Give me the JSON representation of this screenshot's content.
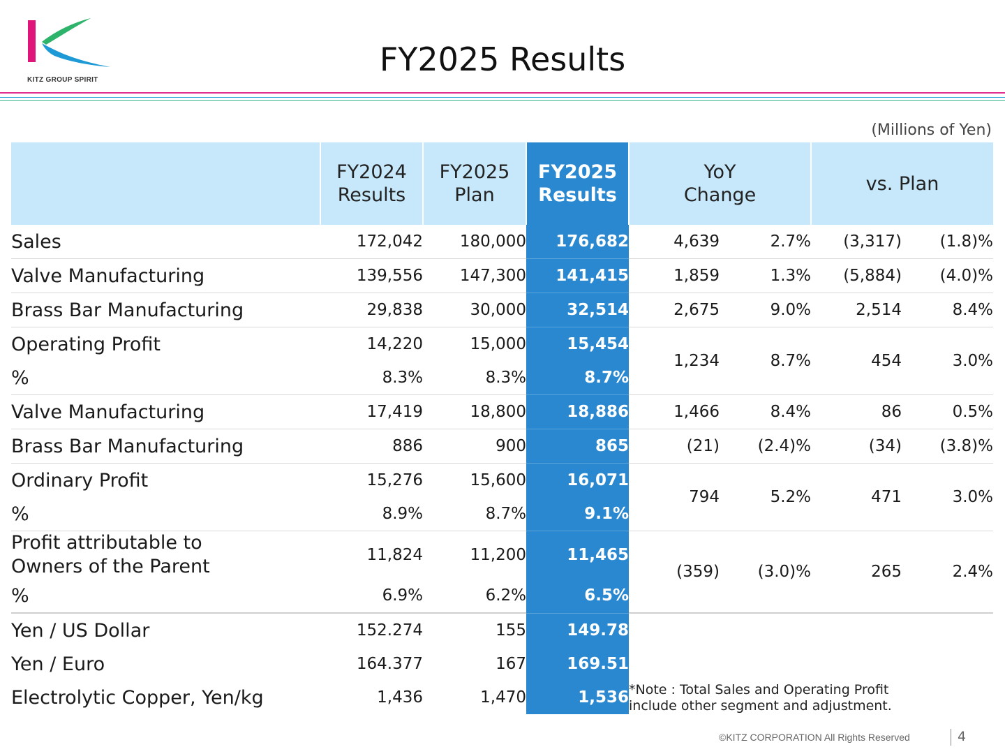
{
  "header": {
    "logo_text": "KITZ GROUP SPIRIT",
    "title": "FY2025 Results",
    "units": "(Millions of Yen)"
  },
  "colors": {
    "header_bg": "#c7e8fb",
    "highlight": "#2a88d0",
    "rule_magenta": "#e02f93",
    "rule_blue": "#2aa7d8",
    "rule_green": "#2fb38a",
    "logo_pink": "#e0157a",
    "logo_blue": "#1d9ad6",
    "logo_green": "#2db36a"
  },
  "table": {
    "columns": {
      "fy2024_line1": "FY2024",
      "fy2024_line2": "Results",
      "plan_line1": "FY2025",
      "plan_line2": "Plan",
      "results_line1": "FY2025",
      "results_line2": "Results",
      "yoy_line1": "YoY",
      "yoy_line2": "Change",
      "vs_plan": "vs. Plan"
    },
    "sales": {
      "label": "Sales",
      "fy2024": "172,042",
      "plan": "180,000",
      "results": "176,682",
      "yoy": "4,639",
      "yoy_pct": "2.7%",
      "vs": "(3,317)",
      "vs_pct": "(1.8)%"
    },
    "sales_valve": {
      "label": "Valve Manufacturing",
      "fy2024": "139,556",
      "plan": "147,300",
      "results": "141,415",
      "yoy": "1,859",
      "yoy_pct": "1.3%",
      "vs": "(5,884)",
      "vs_pct": "(4.0)%"
    },
    "sales_brass": {
      "label": "Brass Bar Manufacturing",
      "fy2024": "29,838",
      "plan": "30,000",
      "results": "32,514",
      "yoy": "2,675",
      "yoy_pct": "9.0%",
      "vs": "2,514",
      "vs_pct": "8.4%"
    },
    "op_profit": {
      "label": "Operating Profit",
      "fy2024": "14,220",
      "plan": "15,000",
      "results": "15,454",
      "yoy": "1,234",
      "yoy_pct": "8.7%",
      "vs": "454",
      "vs_pct": "3.0%"
    },
    "op_margin": {
      "label": "%",
      "fy2024": "8.3%",
      "plan": "8.3%",
      "results": "8.7%"
    },
    "op_valve": {
      "label": "Valve Manufacturing",
      "fy2024": "17,419",
      "plan": "18,800",
      "results": "18,886",
      "yoy": "1,466",
      "yoy_pct": "8.4%",
      "vs": "86",
      "vs_pct": "0.5%"
    },
    "op_brass": {
      "label": "Brass Bar Manufacturing",
      "fy2024": "886",
      "plan": "900",
      "results": "865",
      "yoy": "(21)",
      "yoy_pct": "(2.4)%",
      "vs": "(34)",
      "vs_pct": "(3.8)%"
    },
    "ord_profit": {
      "label": "Ordinary Profit",
      "fy2024": "15,276",
      "plan": "15,600",
      "results": "16,071",
      "yoy": "794",
      "yoy_pct": "5.2%",
      "vs": "471",
      "vs_pct": "3.0%"
    },
    "ord_margin": {
      "label": "%",
      "fy2024": "8.9%",
      "plan": "8.7%",
      "results": "9.1%"
    },
    "net_profit": {
      "label_line1": "Profit attributable to",
      "label_line2": "Owners of the Parent",
      "fy2024": "11,824",
      "plan": "11,200",
      "results": "11,465",
      "yoy": "(359)",
      "yoy_pct": "(3.0)%",
      "vs": "265",
      "vs_pct": "2.4%"
    },
    "net_margin": {
      "label": "%",
      "fy2024": "6.9%",
      "plan": "6.2%",
      "results": "6.5%"
    },
    "usd": {
      "label": "Yen / US Dollar",
      "fy2024": "152.274",
      "plan": "155",
      "results": "149.78"
    },
    "eur": {
      "label": "Yen / Euro",
      "fy2024": "164.377",
      "plan": "167",
      "results": "169.51"
    },
    "copper": {
      "label": "Electrolytic Copper, Yen/kg",
      "fy2024": "1,436",
      "plan": "1,470",
      "results": "1,536"
    }
  },
  "note": {
    "line1": "*Note : Total Sales and Operating Profit",
    "line2": "include other segment and adjustment."
  },
  "footer": {
    "copyright": "©KITZ CORPORATION All Rights Reserved",
    "page": "4"
  }
}
